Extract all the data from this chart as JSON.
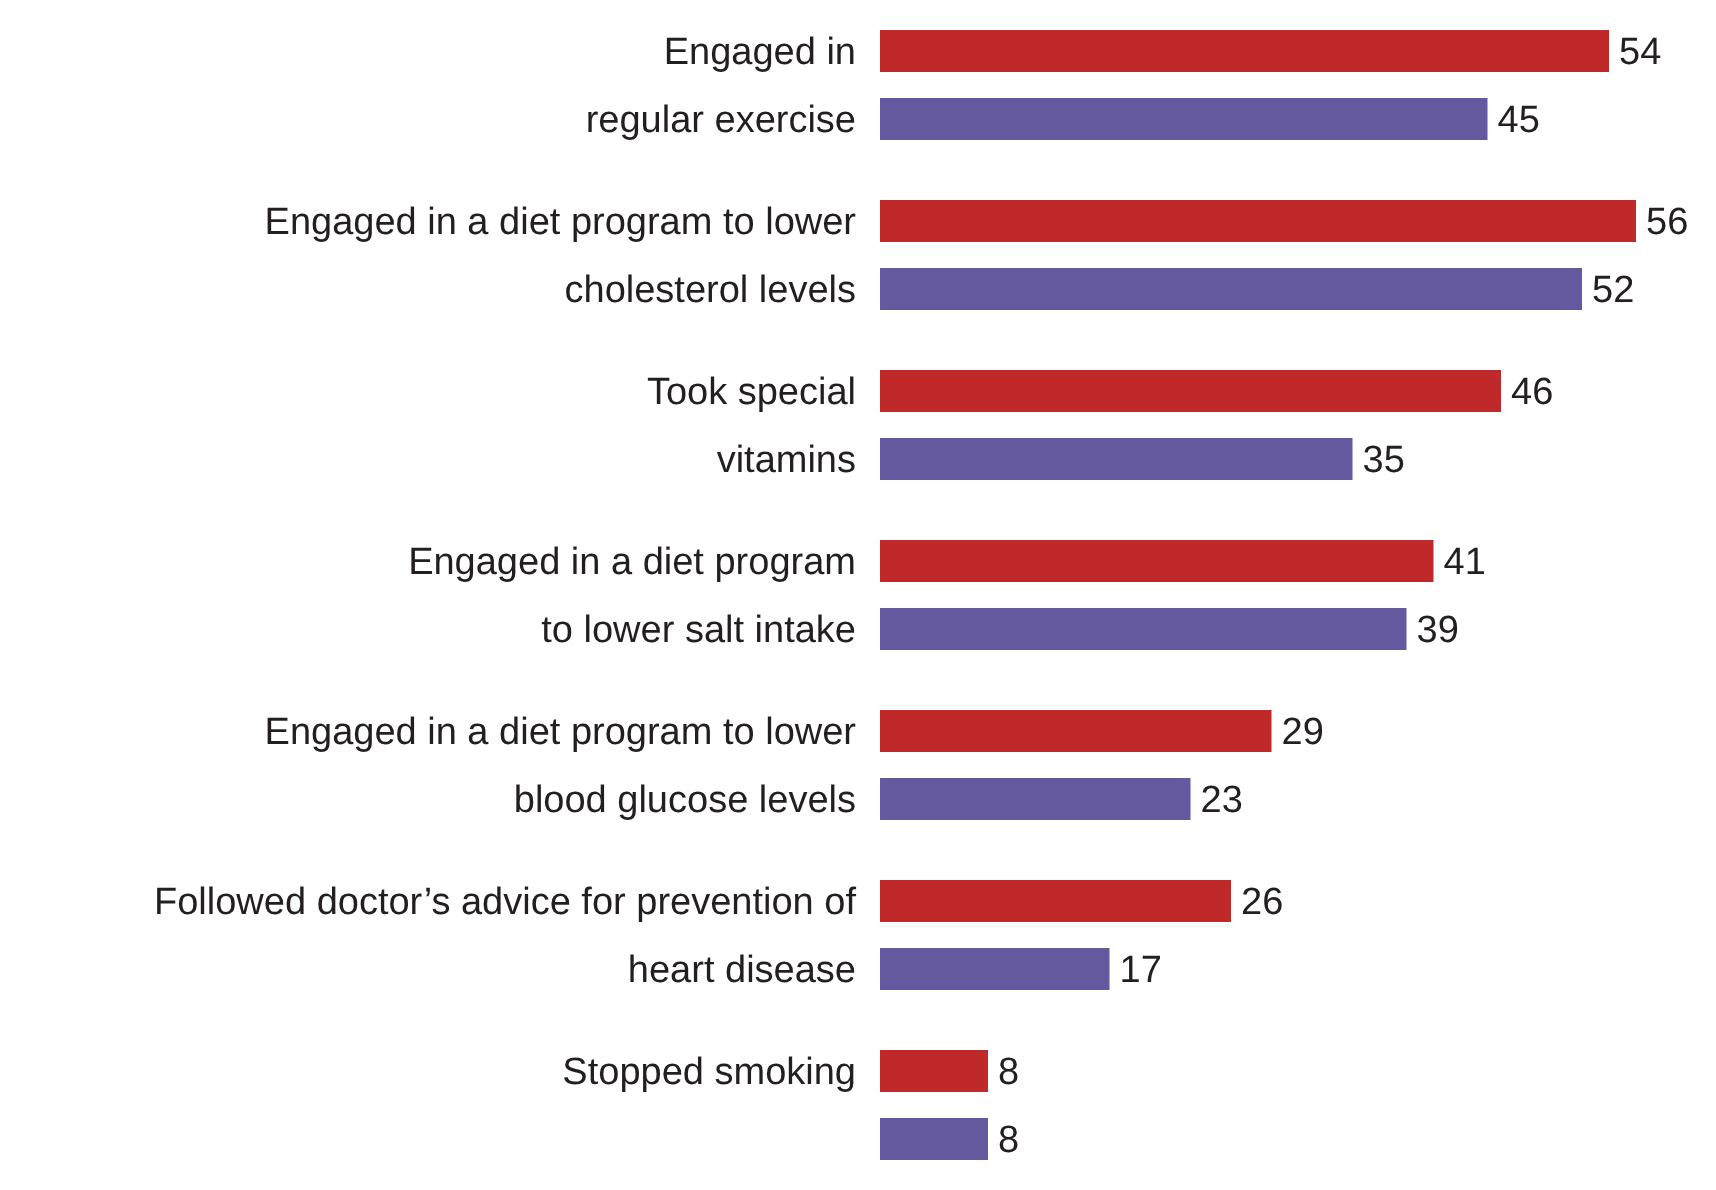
{
  "chart_data": {
    "type": "bar",
    "orientation": "horizontal",
    "categories": [
      "Engaged in\nregular exercise",
      "Engaged in a diet program to lower\ncholesterol levels",
      "Took special\nvitamins",
      "Engaged in a diet program\nto lower salt intake",
      "Engaged in a diet program to lower\nblood glucose levels",
      "Followed doctor’s advice for prevention of\nheart disease",
      "Stopped smoking"
    ],
    "series": [
      {
        "color": "#c0292a",
        "values": [
          54,
          56,
          46,
          41,
          29,
          26,
          8
        ]
      },
      {
        "color": "#64589f",
        "values": [
          45,
          52,
          35,
          39,
          23,
          17,
          8
        ]
      }
    ],
    "data_labels": true
  }
}
